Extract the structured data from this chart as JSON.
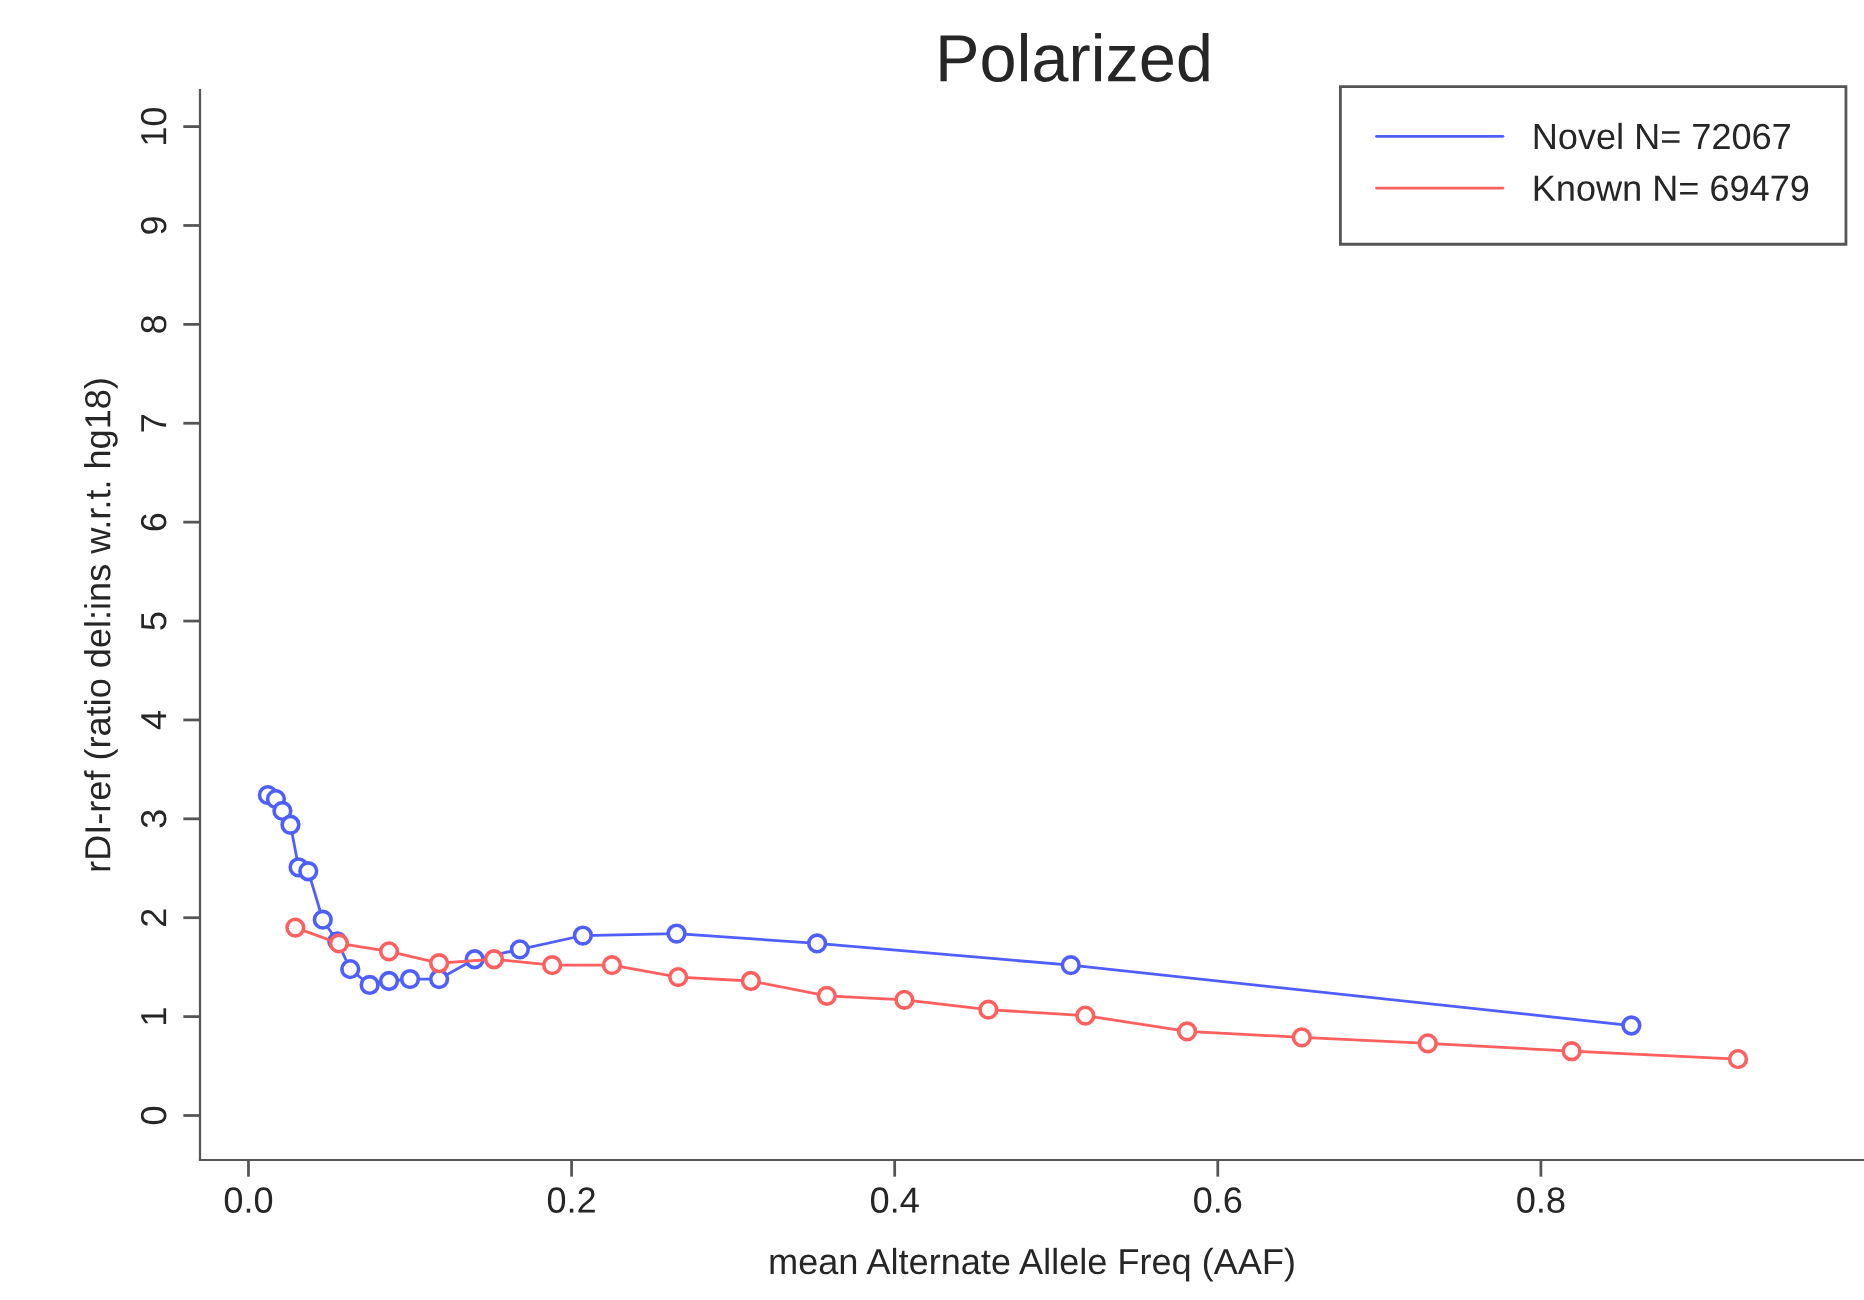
{
  "chart_data": {
    "type": "line",
    "title": "Polarized",
    "xlabel": "mean Alternate Allele Freq (AAF)",
    "ylabel": "rDI-ref (ratio del:ins w.r.t. hg18)",
    "xlim": [
      -0.03,
      1.0
    ],
    "ylim": [
      -0.45,
      10.37
    ],
    "xticks": [
      {
        "value": 0,
        "label": "0.0"
      },
      0.2,
      0.4,
      0.6,
      0.8
    ],
    "yticks": [
      0,
      1,
      2,
      3,
      4,
      5,
      6,
      7,
      8,
      9,
      10
    ],
    "grid": false,
    "legend": "top right",
    "marker": "circle",
    "line_style": "solid",
    "series": [
      {
        "name": "Novel N= 72067",
        "color": "#4f5fff",
        "x": [
          0.012,
          0.017,
          0.021,
          0.026,
          0.031,
          0.037,
          0.046,
          0.055,
          0.063,
          0.075,
          0.087,
          0.1,
          0.118,
          0.14,
          0.168,
          0.207,
          0.265,
          0.352,
          0.509,
          0.856
        ],
        "values": [
          3.24,
          3.2,
          3.08,
          2.94,
          2.51,
          2.47,
          1.98,
          1.76,
          1.48,
          1.32,
          1.36,
          1.38,
          1.38,
          1.58,
          1.68,
          1.82,
          1.84,
          1.74,
          1.52,
          0.91
        ]
      },
      {
        "name": "Known N= 69479",
        "color": "#ff5f5f",
        "x": [
          0.029,
          0.056,
          0.087,
          0.118,
          0.152,
          0.188,
          0.225,
          0.266,
          0.311,
          0.358,
          0.406,
          0.458,
          0.518,
          0.581,
          0.652,
          0.73,
          0.819,
          0.922
        ],
        "values": [
          1.9,
          1.74,
          1.66,
          1.54,
          1.58,
          1.52,
          1.52,
          1.4,
          1.36,
          1.21,
          1.17,
          1.07,
          1.01,
          0.85,
          0.79,
          0.73,
          0.65,
          0.57
        ]
      }
    ]
  }
}
